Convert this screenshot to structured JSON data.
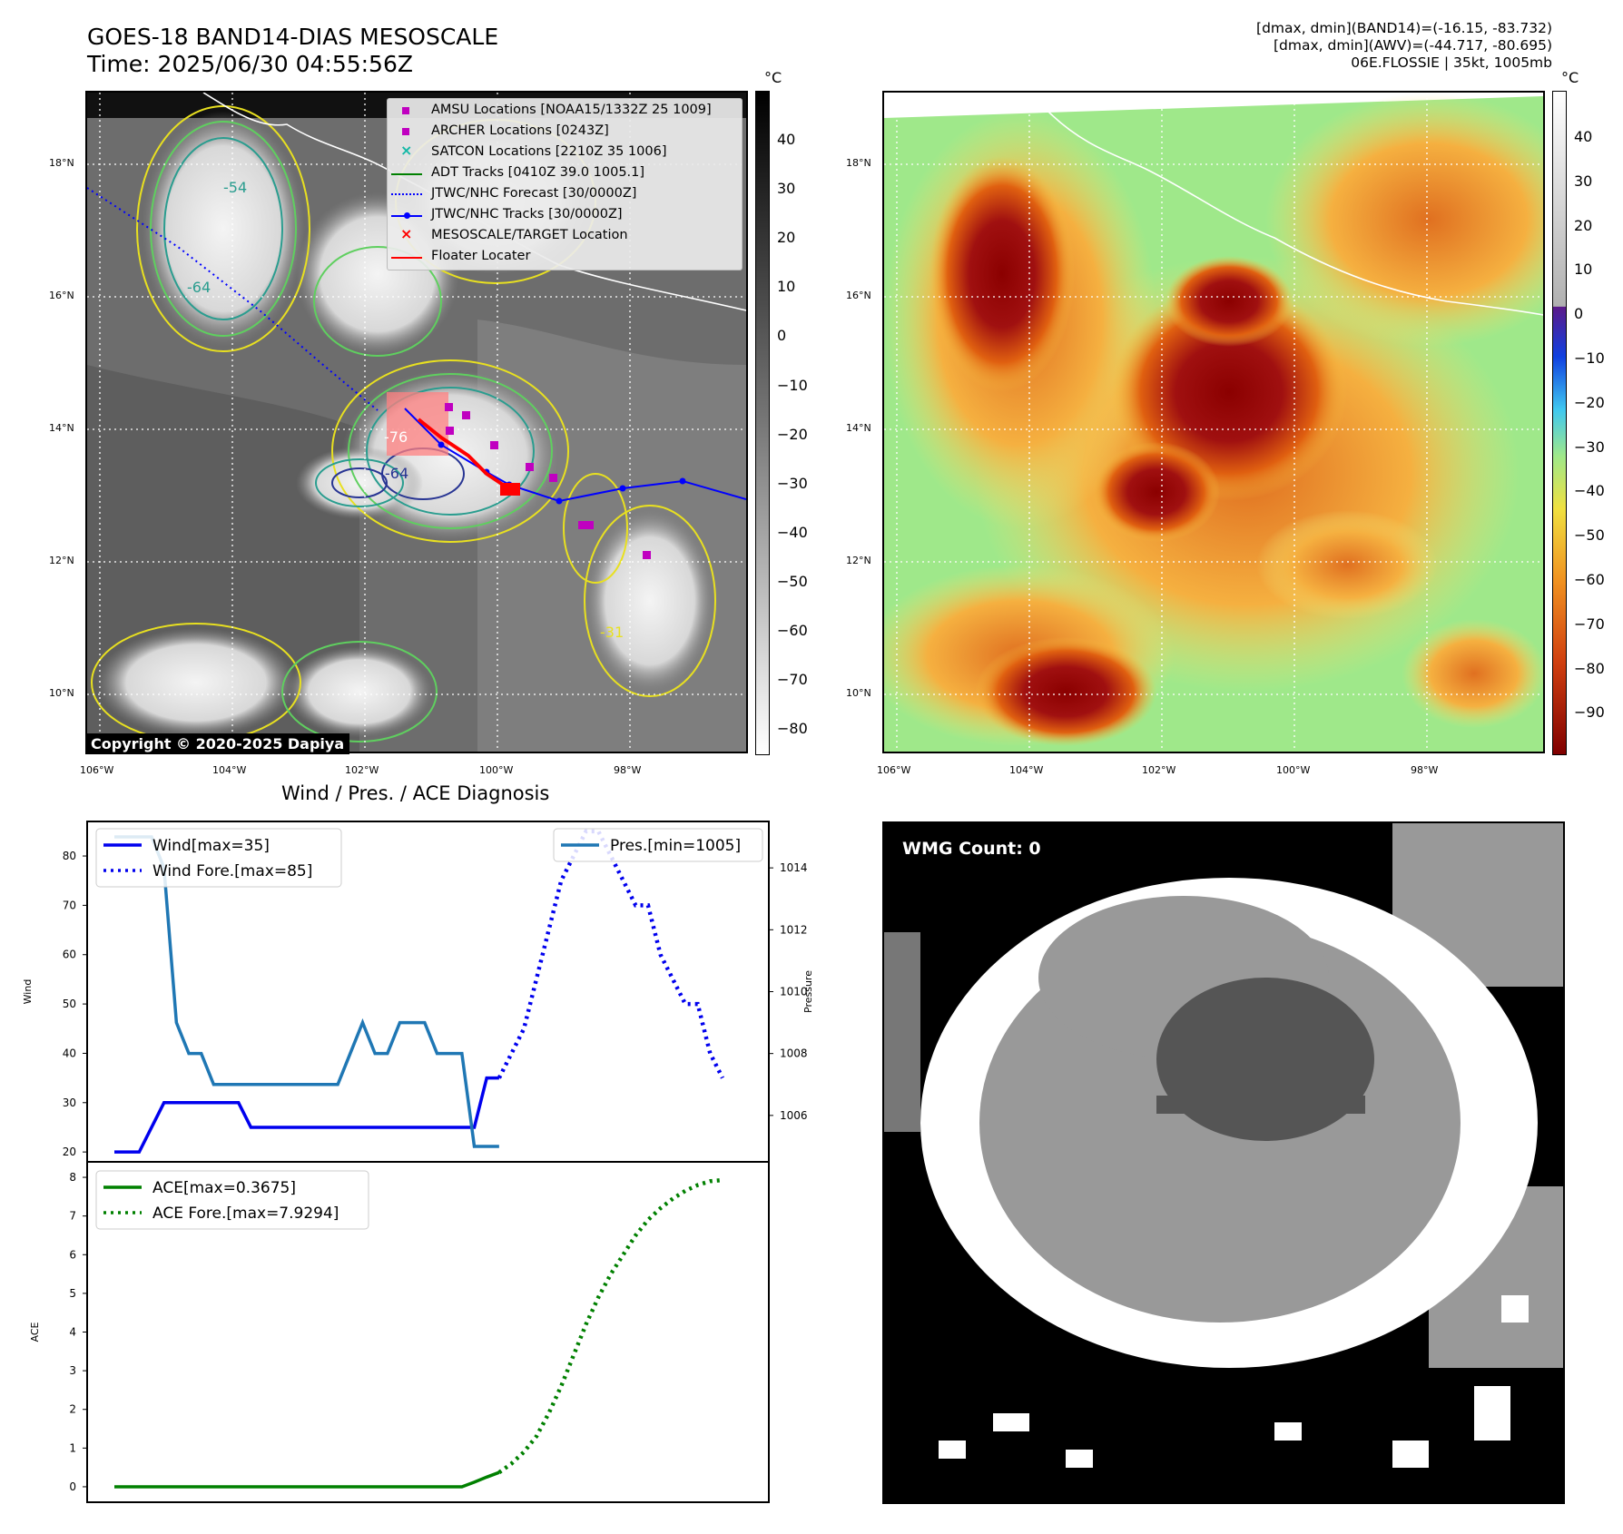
{
  "header": {
    "title_line1": "GOES-18 BAND14-DIAS MESOSCALE",
    "title_line2": "Time: 2025/06/30 04:55:56Z",
    "info_line1": "[dmax, dmin](BAND14)=(-16.15, -83.732)",
    "info_line2": "[dmax, dmin](AWV)=(-44.717, -80.695)",
    "info_line3": "06E.FLOSSIE | 35kt, 1005mb"
  },
  "map_left": {
    "copyright": "Copyright © 2020-2025 Dapiya",
    "lat_labels": [
      "18°N",
      "16°N",
      "14°N",
      "12°N",
      "10°N"
    ],
    "lon_labels": [
      "106°W",
      "104°W",
      "102°W",
      "100°W",
      "98°W"
    ],
    "contour_labels": [
      "-54",
      "-64",
      "-76",
      "-64",
      "-31"
    ],
    "colorbar_unit": "°C",
    "colorbar_ticks": [
      "40",
      "30",
      "20",
      "10",
      "0",
      "−10",
      "−20",
      "−30",
      "−40",
      "−50",
      "−60",
      "−70",
      "−80"
    ],
    "legend": [
      {
        "label": "AMSU Locations [NOAA15/1332Z 25 1009]",
        "marker": "square",
        "color": "#c000c0"
      },
      {
        "label": "ARCHER Locations [0243Z]",
        "marker": "square",
        "color": "#c000c0"
      },
      {
        "label": "SATCON Locations [2210Z 35 1006]",
        "marker": "x",
        "color": "#14b8a6"
      },
      {
        "label": "ADT Tracks [0410Z 39.0 1005.1]",
        "marker": "line",
        "color": "#008000"
      },
      {
        "label": "JTWC/NHC Forecast [30/0000Z]",
        "marker": "dotted",
        "color": "#0000ff"
      },
      {
        "label": "JTWC/NHC Tracks [30/0000Z]",
        "marker": "line-dot",
        "color": "#0000ff"
      },
      {
        "label": "MESOSCALE/TARGET Location",
        "marker": "x",
        "color": "#ff0000"
      },
      {
        "label": "Floater Locater",
        "marker": "line",
        "color": "#ff0000"
      }
    ]
  },
  "map_right": {
    "lat_labels": [
      "18°N",
      "16°N",
      "14°N",
      "12°N",
      "10°N"
    ],
    "lon_labels": [
      "106°W",
      "104°W",
      "102°W",
      "100°W",
      "98°W"
    ],
    "colorbar_unit": "°C",
    "colorbar_ticks": [
      "40",
      "30",
      "20",
      "10",
      "0",
      "−10",
      "−20",
      "−30",
      "−40",
      "−50",
      "−60",
      "−70",
      "−80",
      "−90"
    ]
  },
  "diagnosis": {
    "title": "Wind / Pres. / ACE Diagnosis",
    "wind_ylabel": "Wind",
    "pres_ylabel": "Pressure",
    "ace_ylabel": "ACE",
    "legend_wind": "Wind[max=35]",
    "legend_wind_fore": "Wind Fore.[max=85]",
    "legend_pres": "Pres.[min=1005]",
    "legend_ace": "ACE[max=0.3675]",
    "legend_ace_fore": "ACE Fore.[max=7.9294]"
  },
  "wmg": {
    "label": "WMG Count: 0"
  },
  "chart_data": [
    {
      "type": "line",
      "ylabel": "Wind",
      "ylim": [
        18,
        87
      ],
      "yticks": [
        20,
        30,
        40,
        50,
        60,
        70,
        80
      ],
      "series": [
        {
          "name": "Wind[max=35]",
          "color": "#0000ee",
          "style": "solid",
          "x": [
            0,
            1,
            2,
            3,
            4,
            5,
            6,
            7,
            8,
            9,
            10,
            11,
            12,
            13,
            14,
            15,
            16,
            17,
            18,
            19,
            20,
            21,
            22,
            23,
            24,
            25,
            26,
            27,
            28,
            29,
            30,
            31
          ],
          "y": [
            20,
            20,
            20,
            25,
            30,
            30,
            30,
            30,
            30,
            30,
            30,
            25,
            25,
            25,
            25,
            25,
            25,
            25,
            25,
            25,
            25,
            25,
            25,
            25,
            25,
            25,
            25,
            25,
            25,
            25,
            35,
            35
          ]
        },
        {
          "name": "Wind Fore.[max=85]",
          "color": "#0000ee",
          "style": "dotted",
          "x": [
            31,
            32,
            33,
            34,
            35,
            36,
            37,
            38,
            39,
            40,
            41,
            42,
            43,
            44,
            45,
            46,
            47,
            48,
            49
          ],
          "y": [
            35,
            40,
            45,
            55,
            65,
            75,
            80,
            85,
            85,
            80,
            75,
            70,
            70,
            60,
            55,
            50,
            50,
            40,
            35
          ]
        }
      ]
    },
    {
      "type": "line",
      "ylabel": "Pressure",
      "ylim": [
        1004.5,
        1015.5
      ],
      "yticks": [
        1006,
        1008,
        1010,
        1012,
        1014
      ],
      "series": [
        {
          "name": "Pres.[min=1005]",
          "color": "#1f77b4",
          "style": "solid",
          "x": [
            0,
            1,
            2,
            3,
            4,
            5,
            6,
            7,
            8,
            9,
            10,
            11,
            12,
            13,
            14,
            15,
            16,
            17,
            18,
            19,
            20,
            21,
            22,
            23,
            24,
            25,
            26,
            27,
            28,
            29,
            30,
            31
          ],
          "y": [
            1015,
            1015,
            1015,
            1015,
            1014,
            1009,
            1008,
            1008,
            1007,
            1007,
            1007,
            1007,
            1007,
            1007,
            1007,
            1007,
            1007,
            1007,
            1007,
            1008,
            1009,
            1008,
            1008,
            1009,
            1009,
            1009,
            1008,
            1008,
            1008,
            1005,
            1005,
            1005
          ]
        }
      ]
    },
    {
      "type": "line",
      "ylabel": "ACE",
      "ylim": [
        -0.4,
        8.4
      ],
      "yticks": [
        0,
        1,
        2,
        3,
        4,
        5,
        6,
        7,
        8
      ],
      "series": [
        {
          "name": "ACE[max=0.3675]",
          "color": "#008000",
          "style": "solid",
          "x": [
            0,
            1,
            2,
            3,
            4,
            5,
            6,
            7,
            8,
            9,
            10,
            11,
            12,
            13,
            14,
            15,
            16,
            17,
            18,
            19,
            20,
            21,
            22,
            23,
            24,
            25,
            26,
            27,
            28,
            29,
            30,
            31
          ],
          "y": [
            0,
            0,
            0,
            0,
            0,
            0,
            0,
            0,
            0,
            0,
            0,
            0,
            0,
            0,
            0,
            0,
            0,
            0,
            0,
            0,
            0,
            0,
            0,
            0,
            0,
            0,
            0,
            0,
            0,
            0.12,
            0.25,
            0.37
          ]
        },
        {
          "name": "ACE Fore.[max=7.9294]",
          "color": "#008000",
          "style": "dotted",
          "x": [
            31,
            32,
            33,
            34,
            35,
            36,
            37,
            38,
            39,
            40,
            41,
            42,
            43,
            44,
            45,
            46,
            47,
            48,
            49
          ],
          "y": [
            0.37,
            0.6,
            0.9,
            1.3,
            1.9,
            2.6,
            3.4,
            4.2,
            4.9,
            5.5,
            6.0,
            6.5,
            6.9,
            7.2,
            7.45,
            7.65,
            7.8,
            7.9,
            7.93
          ]
        }
      ]
    }
  ]
}
